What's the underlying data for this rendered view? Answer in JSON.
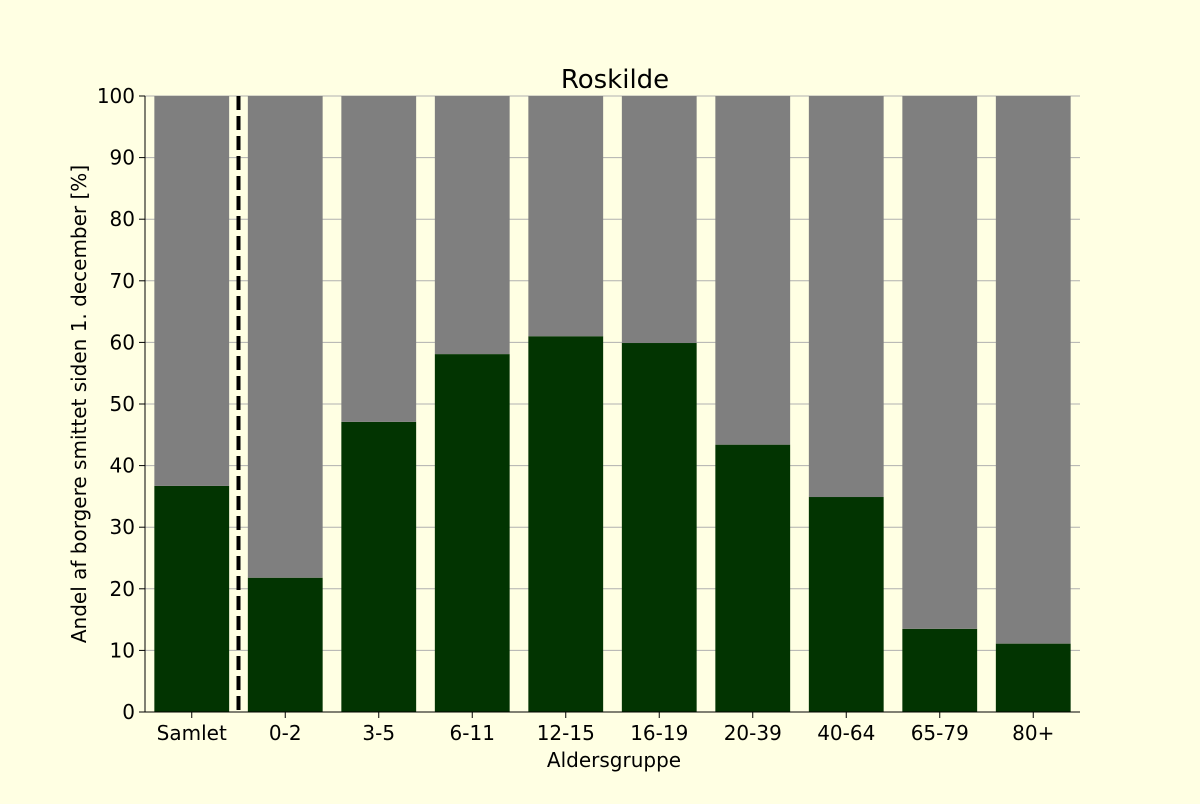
{
  "chart_data": {
    "type": "bar",
    "stacked": true,
    "title": "Roskilde",
    "xlabel": "Aldersgruppe",
    "ylabel": "Andel af borgere smittet siden 1. december [%]",
    "categories": [
      "Samlet",
      "0-2",
      "3-5",
      "6-11",
      "12-15",
      "16-19",
      "20-39",
      "40-64",
      "65-79",
      "80+"
    ],
    "series": [
      {
        "values": [
          36.7,
          21.8,
          47.1,
          58.1,
          61.0,
          59.9,
          43.4,
          34.9,
          13.5,
          11.1
        ]
      },
      {
        "values": [
          63.3,
          78.2,
          52.9,
          41.9,
          39.0,
          40.1,
          56.6,
          65.1,
          86.5,
          88.9
        ]
      }
    ],
    "ylim": [
      0,
      100
    ],
    "yticks": [
      0,
      10,
      20,
      30,
      40,
      50,
      60,
      70,
      80,
      90,
      100
    ],
    "grid": "horizontal",
    "separator_after_category": "Samlet",
    "colors": {
      "background": "#ffffe3",
      "infected": "#023401",
      "remainder": "#7f7f7f",
      "grid": "#b0b0b0",
      "separator": "#000000"
    }
  }
}
